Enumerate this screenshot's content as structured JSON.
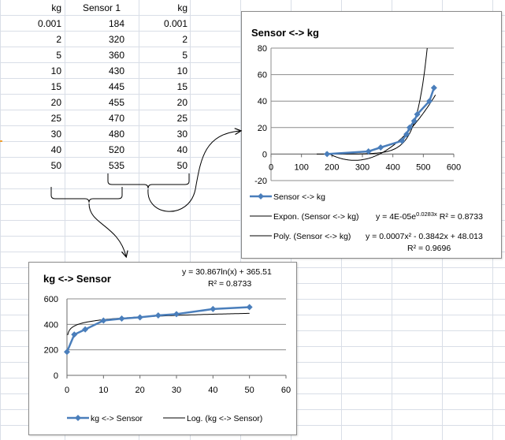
{
  "table": {
    "headers": [
      "kg",
      "Sensor 1",
      "kg"
    ],
    "rows": [
      [
        "0.001",
        "184",
        "0.001"
      ],
      [
        "2",
        "320",
        "2"
      ],
      [
        "5",
        "360",
        "5"
      ],
      [
        "10",
        "430",
        "10"
      ],
      [
        "15",
        "445",
        "15"
      ],
      [
        "20",
        "455",
        "20"
      ],
      [
        "25",
        "470",
        "25"
      ],
      [
        "30",
        "480",
        "30"
      ],
      [
        "40",
        "520",
        "40"
      ],
      [
        "50",
        "535",
        "50"
      ]
    ]
  },
  "chart_data": [
    {
      "type": "scatter",
      "title": "Sensor <-> kg",
      "xlim": [
        0,
        600
      ],
      "ylim": [
        -20,
        80
      ],
      "xticks": [
        "0",
        "100",
        "200",
        "300",
        "400",
        "500",
        "600"
      ],
      "yticks": [
        "80",
        "60",
        "40",
        "20",
        "0",
        "-20"
      ],
      "series": [
        {
          "name": "Sensor <-> kg",
          "x": [
            184,
            320,
            360,
            430,
            445,
            455,
            470,
            480,
            520,
            535
          ],
          "y": [
            0.001,
            2,
            5,
            10,
            15,
            20,
            25,
            30,
            40,
            50
          ],
          "color": "#4a7ebb"
        }
      ],
      "trendlines": [
        {
          "name": "Expon. (Sensor <-> kg)",
          "equation": "y = 4E-05e",
          "exponent": "0.0283x",
          "r2": "R² = 0.8733",
          "a": 4e-05,
          "b": 0.0283
        },
        {
          "name": "Poly. (Sensor <-> kg)",
          "equation": "y = 0.0007x² - 0.3842x + 48.013",
          "r2": "R² = 0.9696",
          "coef": [
            0.0007,
            -0.3842,
            48.013
          ]
        }
      ],
      "grid": true,
      "legend": "bottom"
    },
    {
      "type": "scatter",
      "title": "kg <-> Sensor",
      "xlim": [
        0,
        60
      ],
      "ylim": [
        0,
        600
      ],
      "xticks": [
        "0",
        "10",
        "20",
        "30",
        "40",
        "50",
        "60"
      ],
      "yticks": [
        "600",
        "400",
        "200",
        "0"
      ],
      "series": [
        {
          "name": "kg <-> Sensor",
          "x": [
            0.001,
            2,
            5,
            10,
            15,
            20,
            25,
            30,
            40,
            50
          ],
          "y": [
            184,
            320,
            360,
            430,
            445,
            455,
            470,
            480,
            520,
            535
          ],
          "color": "#4a7ebb"
        }
      ],
      "trendlines": [
        {
          "name": "Log. (kg <-> Sensor)",
          "equation": "y = 30.867ln(x) + 365.51",
          "r2": "R² = 0.8733",
          "a": 30.867,
          "b": 365.51
        }
      ],
      "grid": true,
      "legend": "bottom"
    }
  ]
}
